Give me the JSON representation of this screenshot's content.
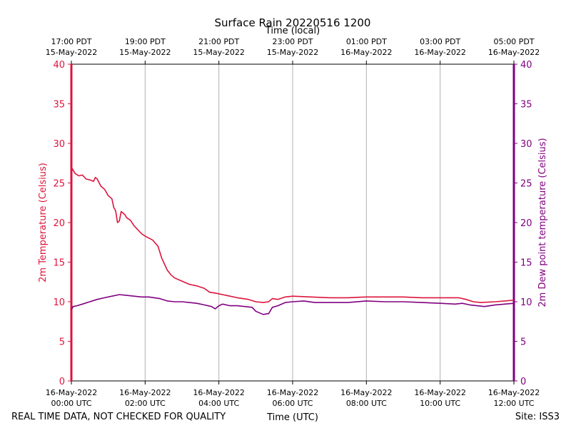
{
  "chart_data": {
    "type": "line",
    "title": "Surface Rain 20220516 1200",
    "xlabel": "Time (UTC)",
    "xlabel_top": "Time (local)",
    "ylabel_left": "2m Temperature (Celsius)",
    "ylabel_right": "2m Dew point temperature (Celsius)",
    "ylim": [
      0,
      40
    ],
    "yticks": [
      "0",
      "5",
      "10",
      "15",
      "20",
      "25",
      "30",
      "35",
      "40"
    ],
    "xlim_hours": [
      0,
      12
    ],
    "xticks_bottom": [
      {
        "h": 0,
        "line1": "16-May-2022",
        "line2": "00:00 UTC"
      },
      {
        "h": 2,
        "line1": "16-May-2022",
        "line2": "02:00 UTC"
      },
      {
        "h": 4,
        "line1": "16-May-2022",
        "line2": "04:00 UTC"
      },
      {
        "h": 6,
        "line1": "16-May-2022",
        "line2": "06:00 UTC"
      },
      {
        "h": 8,
        "line1": "16-May-2022",
        "line2": "08:00 UTC"
      },
      {
        "h": 10,
        "line1": "16-May-2022",
        "line2": "10:00 UTC"
      },
      {
        "h": 12,
        "line1": "16-May-2022",
        "line2": "12:00 UTC"
      }
    ],
    "xticks_top": [
      {
        "h": 0,
        "line1": "17:00 PDT",
        "line2": "15-May-2022"
      },
      {
        "h": 2,
        "line1": "19:00 PDT",
        "line2": "15-May-2022"
      },
      {
        "h": 4,
        "line1": "21:00 PDT",
        "line2": "15-May-2022"
      },
      {
        "h": 6,
        "line1": "23:00 PDT",
        "line2": "15-May-2022"
      },
      {
        "h": 8,
        "line1": "01:00 PDT",
        "line2": "16-May-2022"
      },
      {
        "h": 10,
        "line1": "03:00 PDT",
        "line2": "16-May-2022"
      },
      {
        "h": 12,
        "line1": "05:00 PDT",
        "line2": "16-May-2022"
      }
    ],
    "grid": "vertical",
    "series": [
      {
        "name": "2m Temperature (Celsius)",
        "color": "#dc143c",
        "axis": "left",
        "points": [
          [
            0,
            27.0
          ],
          [
            0.1,
            26.2
          ],
          [
            0.2,
            25.9
          ],
          [
            0.3,
            26.0
          ],
          [
            0.4,
            25.5
          ],
          [
            0.5,
            25.4
          ],
          [
            0.6,
            25.2
          ],
          [
            0.65,
            25.7
          ],
          [
            0.7,
            25.5
          ],
          [
            0.8,
            24.6
          ],
          [
            0.9,
            24.2
          ],
          [
            1.0,
            23.4
          ],
          [
            1.1,
            23.0
          ],
          [
            1.15,
            21.9
          ],
          [
            1.2,
            21.5
          ],
          [
            1.25,
            20.0
          ],
          [
            1.3,
            20.2
          ],
          [
            1.35,
            21.4
          ],
          [
            1.45,
            21.0
          ],
          [
            1.5,
            20.6
          ],
          [
            1.6,
            20.3
          ],
          [
            1.7,
            19.6
          ],
          [
            1.8,
            19.1
          ],
          [
            1.9,
            18.6
          ],
          [
            2.0,
            18.3
          ],
          [
            2.2,
            17.8
          ],
          [
            2.35,
            17.0
          ],
          [
            2.45,
            15.5
          ],
          [
            2.5,
            15.0
          ],
          [
            2.6,
            14.0
          ],
          [
            2.7,
            13.4
          ],
          [
            2.8,
            13.0
          ],
          [
            3.0,
            12.6
          ],
          [
            3.2,
            12.2
          ],
          [
            3.4,
            12.0
          ],
          [
            3.6,
            11.7
          ],
          [
            3.75,
            11.2
          ],
          [
            3.9,
            11.1
          ],
          [
            4.1,
            10.9
          ],
          [
            4.3,
            10.7
          ],
          [
            4.5,
            10.5
          ],
          [
            4.8,
            10.3
          ],
          [
            5.0,
            10.0
          ],
          [
            5.2,
            9.9
          ],
          [
            5.35,
            10.0
          ],
          [
            5.45,
            10.4
          ],
          [
            5.6,
            10.3
          ],
          [
            5.8,
            10.6
          ],
          [
            6.0,
            10.7
          ],
          [
            6.5,
            10.6
          ],
          [
            7.0,
            10.5
          ],
          [
            7.5,
            10.5
          ],
          [
            8.0,
            10.6
          ],
          [
            8.5,
            10.6
          ],
          [
            9.0,
            10.6
          ],
          [
            9.5,
            10.5
          ],
          [
            10.0,
            10.5
          ],
          [
            10.5,
            10.5
          ],
          [
            10.7,
            10.3
          ],
          [
            10.9,
            10.0
          ],
          [
            11.1,
            9.9
          ],
          [
            11.5,
            10.0
          ],
          [
            12.0,
            10.2
          ]
        ]
      },
      {
        "name": "2m Dew point temperature (Celsius)",
        "color": "#800080",
        "axis": "right",
        "points": [
          [
            0,
            9.0
          ],
          [
            0.05,
            9.4
          ],
          [
            0.15,
            9.5
          ],
          [
            0.3,
            9.7
          ],
          [
            0.5,
            10.0
          ],
          [
            0.7,
            10.3
          ],
          [
            0.9,
            10.5
          ],
          [
            1.1,
            10.7
          ],
          [
            1.3,
            10.9
          ],
          [
            1.5,
            10.8
          ],
          [
            1.7,
            10.7
          ],
          [
            1.9,
            10.6
          ],
          [
            2.1,
            10.6
          ],
          [
            2.4,
            10.4
          ],
          [
            2.6,
            10.1
          ],
          [
            2.8,
            10.0
          ],
          [
            3.0,
            10.0
          ],
          [
            3.2,
            9.9
          ],
          [
            3.4,
            9.8
          ],
          [
            3.6,
            9.6
          ],
          [
            3.8,
            9.4
          ],
          [
            3.9,
            9.1
          ],
          [
            4.0,
            9.5
          ],
          [
            4.1,
            9.7
          ],
          [
            4.3,
            9.5
          ],
          [
            4.5,
            9.5
          ],
          [
            4.7,
            9.4
          ],
          [
            4.9,
            9.3
          ],
          [
            5.0,
            8.8
          ],
          [
            5.2,
            8.4
          ],
          [
            5.35,
            8.5
          ],
          [
            5.45,
            9.3
          ],
          [
            5.6,
            9.5
          ],
          [
            5.8,
            9.9
          ],
          [
            6.0,
            10.0
          ],
          [
            6.3,
            10.1
          ],
          [
            6.6,
            9.9
          ],
          [
            7.0,
            9.9
          ],
          [
            7.5,
            9.9
          ],
          [
            8.0,
            10.1
          ],
          [
            8.5,
            10.0
          ],
          [
            9.0,
            10.0
          ],
          [
            9.5,
            9.9
          ],
          [
            10.0,
            9.8
          ],
          [
            10.4,
            9.7
          ],
          [
            10.6,
            9.8
          ],
          [
            10.8,
            9.6
          ],
          [
            11.0,
            9.5
          ],
          [
            11.2,
            9.4
          ],
          [
            11.5,
            9.6
          ],
          [
            12.0,
            9.8
          ]
        ]
      }
    ]
  },
  "footer": {
    "left_text": "REAL TIME DATA, NOT CHECKED FOR QUALITY",
    "right_text": "Site: ISS3"
  },
  "colors": {
    "temperature": "#dc143c",
    "dewpoint": "#800080",
    "grid": "#b0b0b0"
  }
}
